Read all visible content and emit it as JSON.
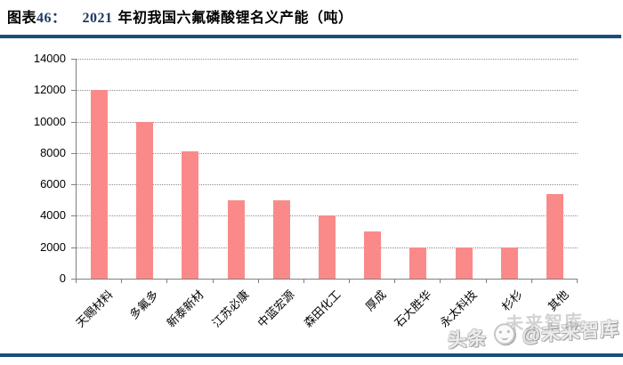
{
  "header": {
    "prefix": "图表",
    "number": "46：",
    "year": "2021",
    "title_rest": "年初我国六氟磷酸锂名义产能（吨）",
    "number_color": "#1F3864",
    "rule_color": "#1B4E79"
  },
  "watermark": {
    "left_text": "头条",
    "at_text": "@未来智库",
    "ghost_text": "未来智库",
    "logo_icon": "smiley-face-logo"
  },
  "chart_data": {
    "type": "bar",
    "title": "图表46： 2021 年初我国六氟磷酸锂名义产能（吨）",
    "categories": [
      "天赐材料",
      "多氟多",
      "新泰新材",
      "江苏必康",
      "中蓝宏源",
      "森田化工",
      "厚成",
      "石大胜华",
      "永太科技",
      "杉杉",
      "其他"
    ],
    "values": [
      12000,
      10000,
      8100,
      5000,
      5000,
      4000,
      3000,
      2000,
      2000,
      2000,
      5400
    ],
    "xlabel": "",
    "ylabel": "",
    "ylim": [
      0,
      14000
    ],
    "yticks": [
      0,
      2000,
      4000,
      6000,
      8000,
      10000,
      12000,
      14000
    ],
    "grid": true,
    "legend_position": "none",
    "x_label_rotation_deg": 45,
    "bar_color": "#FA8A8A",
    "gridline_color": "#8C8C8C",
    "axis_color": "#808080"
  }
}
